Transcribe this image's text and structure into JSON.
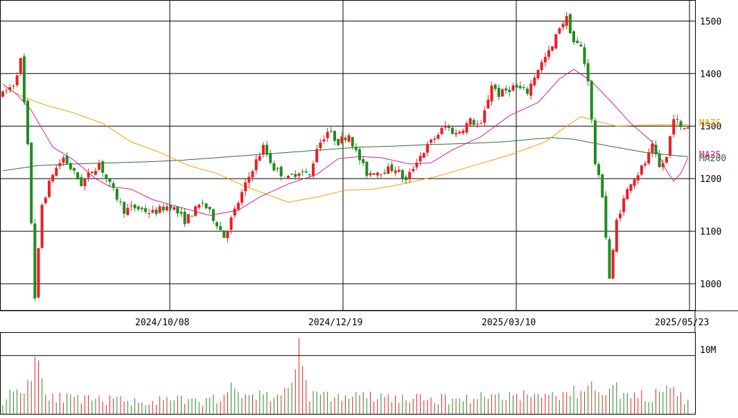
{
  "colors": {
    "up": "#ee1c25",
    "down": "#1e8c1e",
    "ma25": "#e0189a",
    "ma75": "#f2a000",
    "ma200": "#2e6e2e",
    "grid": "#000000",
    "frame": "#000000"
  },
  "chart_data": {
    "type": "candlestick",
    "price_axis": {
      "ylim": [
        950,
        1540
      ],
      "ticks": [
        1000,
        1100,
        1200,
        1300,
        1400,
        1500
      ],
      "tick_labels": [
        "1000",
        "1100",
        "1200",
        "1300",
        "1400",
        "1500"
      ]
    },
    "date_axis": {
      "dates": [
        "2024/10/08",
        "2024/12/19",
        "2025/03/10",
        "2025/05/23"
      ]
    },
    "volume_axis": {
      "ylim": [
        0,
        14
      ],
      "tick_value": 10,
      "tick_label": "10M"
    },
    "legend": {
      "ma75": "MA75",
      "ma25": "MA25",
      "ma200": "MA200"
    },
    "price_anchors": [
      [
        0,
        1360
      ],
      [
        3,
        1380
      ],
      [
        5,
        1425
      ],
      [
        7,
        1260
      ],
      [
        9,
        975
      ],
      [
        11,
        1150
      ],
      [
        14,
        1210
      ],
      [
        17,
        1240
      ],
      [
        20,
        1210
      ],
      [
        22,
        1190
      ],
      [
        27,
        1230
      ],
      [
        29,
        1200
      ],
      [
        34,
        1140
      ],
      [
        37,
        1145
      ],
      [
        42,
        1135
      ],
      [
        47,
        1150
      ],
      [
        51,
        1120
      ],
      [
        56,
        1155
      ],
      [
        60,
        1115
      ],
      [
        62,
        1090
      ],
      [
        66,
        1155
      ],
      [
        70,
        1220
      ],
      [
        73,
        1260
      ],
      [
        76,
        1220
      ],
      [
        80,
        1200
      ],
      [
        83,
        1215
      ],
      [
        86,
        1205
      ],
      [
        88,
        1260
      ],
      [
        91,
        1290
      ],
      [
        94,
        1270
      ],
      [
        97,
        1285
      ],
      [
        99,
        1250
      ],
      [
        102,
        1210
      ],
      [
        106,
        1215
      ],
      [
        110,
        1220
      ],
      [
        113,
        1195
      ],
      [
        116,
        1235
      ],
      [
        120,
        1270
      ],
      [
        124,
        1300
      ],
      [
        127,
        1285
      ],
      [
        131,
        1310
      ],
      [
        134,
        1300
      ],
      [
        137,
        1380
      ],
      [
        139,
        1360
      ],
      [
        143,
        1375
      ],
      [
        147,
        1365
      ],
      [
        150,
        1410
      ],
      [
        154,
        1450
      ],
      [
        156,
        1490
      ],
      [
        158,
        1505
      ],
      [
        160,
        1460
      ],
      [
        162,
        1450
      ],
      [
        164,
        1390
      ],
      [
        166,
        1230
      ],
      [
        168,
        1170
      ],
      [
        170,
        1010
      ],
      [
        171,
        1060
      ],
      [
        172,
        1120
      ],
      [
        174,
        1160
      ],
      [
        176,
        1195
      ],
      [
        178,
        1210
      ],
      [
        180,
        1230
      ],
      [
        182,
        1260
      ],
      [
        184,
        1220
      ],
      [
        186,
        1240
      ],
      [
        188,
        1320
      ],
      [
        190,
        1295
      ],
      [
        192,
        1300
      ]
    ],
    "ma_anchors": {
      "ma25": [
        [
          0,
          1380
        ],
        [
          4,
          1360
        ],
        [
          8,
          1330
        ],
        [
          14,
          1260
        ],
        [
          20,
          1235
        ],
        [
          26,
          1200
        ],
        [
          30,
          1185
        ],
        [
          36,
          1180
        ],
        [
          42,
          1160
        ],
        [
          50,
          1145
        ],
        [
          58,
          1130
        ],
        [
          66,
          1140
        ],
        [
          72,
          1165
        ],
        [
          80,
          1190
        ],
        [
          88,
          1208
        ],
        [
          94,
          1238
        ],
        [
          100,
          1242
        ],
        [
          106,
          1240
        ],
        [
          114,
          1228
        ],
        [
          120,
          1230
        ],
        [
          126,
          1255
        ],
        [
          134,
          1280
        ],
        [
          142,
          1320
        ],
        [
          150,
          1345
        ],
        [
          156,
          1390
        ],
        [
          160,
          1408
        ],
        [
          165,
          1385
        ],
        [
          170,
          1350
        ],
        [
          176,
          1305
        ],
        [
          182,
          1270
        ],
        [
          186,
          1215
        ],
        [
          188,
          1195
        ],
        [
          190,
          1210
        ],
        [
          192,
          1240
        ]
      ],
      "ma75": [
        [
          0,
          1375
        ],
        [
          6,
          1355
        ],
        [
          12,
          1340
        ],
        [
          20,
          1325
        ],
        [
          28,
          1305
        ],
        [
          36,
          1270
        ],
        [
          44,
          1250
        ],
        [
          52,
          1225
        ],
        [
          60,
          1210
        ],
        [
          68,
          1185
        ],
        [
          76,
          1165
        ],
        [
          80,
          1155
        ],
        [
          88,
          1165
        ],
        [
          96,
          1178
        ],
        [
          104,
          1180
        ],
        [
          112,
          1190
        ],
        [
          122,
          1205
        ],
        [
          132,
          1225
        ],
        [
          142,
          1245
        ],
        [
          152,
          1270
        ],
        [
          158,
          1300
        ],
        [
          162,
          1318
        ],
        [
          166,
          1310
        ],
        [
          172,
          1300
        ],
        [
          180,
          1302
        ],
        [
          192,
          1303
        ]
      ],
      "ma200": [
        [
          0,
          1215
        ],
        [
          10,
          1225
        ],
        [
          20,
          1228
        ],
        [
          30,
          1230
        ],
        [
          40,
          1232
        ],
        [
          50,
          1235
        ],
        [
          60,
          1240
        ],
        [
          70,
          1245
        ],
        [
          80,
          1250
        ],
        [
          90,
          1255
        ],
        [
          100,
          1260
        ],
        [
          110,
          1262
        ],
        [
          120,
          1265
        ],
        [
          130,
          1267
        ],
        [
          140,
          1270
        ],
        [
          148,
          1275
        ],
        [
          154,
          1278
        ],
        [
          160,
          1275
        ],
        [
          170,
          1262
        ],
        [
          180,
          1250
        ],
        [
          190,
          1243
        ],
        [
          192,
          1242
        ]
      ]
    },
    "volume_anchors": [
      [
        0,
        2.5
      ],
      [
        4,
        4.5
      ],
      [
        6,
        5
      ],
      [
        8,
        6.5
      ],
      [
        9,
        13
      ],
      [
        10,
        9
      ],
      [
        12,
        4
      ],
      [
        16,
        3
      ],
      [
        22,
        2.5
      ],
      [
        30,
        2.5
      ],
      [
        40,
        2.2
      ],
      [
        50,
        2.5
      ],
      [
        56,
        2
      ],
      [
        60,
        3
      ],
      [
        63,
        4.5
      ],
      [
        66,
        3.5
      ],
      [
        70,
        3.5
      ],
      [
        76,
        3.2
      ],
      [
        80,
        4
      ],
      [
        83,
        12
      ],
      [
        86,
        3.5
      ],
      [
        92,
        3
      ],
      [
        100,
        3.2
      ],
      [
        110,
        2.8
      ],
      [
        120,
        2.6
      ],
      [
        130,
        2.8
      ],
      [
        140,
        3.5
      ],
      [
        150,
        3.2
      ],
      [
        160,
        3.8
      ],
      [
        166,
        4.8
      ],
      [
        170,
        5
      ],
      [
        176,
        3
      ],
      [
        184,
        3.5
      ],
      [
        188,
        4
      ],
      [
        192,
        2
      ]
    ]
  }
}
